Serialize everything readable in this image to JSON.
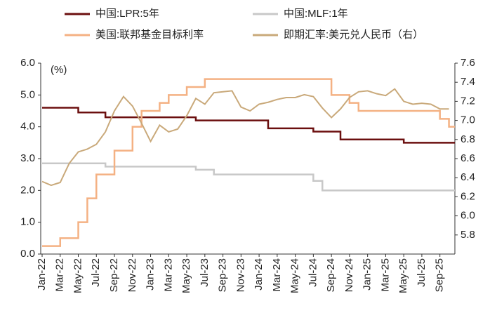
{
  "chart_data": {
    "type": "line",
    "categories": [
      "Jan-22",
      null,
      "Mar-22",
      null,
      "May-22",
      null,
      "Jul-22",
      null,
      "Sep-22",
      null,
      "Nov-22",
      null,
      "Jan-23",
      null,
      "Mar-23",
      null,
      "May-23",
      null,
      "Jul-23",
      null,
      "Sep-23",
      null,
      "Nov-23",
      null,
      "Jan-24",
      null,
      "Mar-24",
      null,
      "May-24",
      null,
      "Jul-24",
      null,
      "Sep-24",
      null,
      "Nov-24",
      null,
      "Jan-25",
      null,
      "Mar-25",
      null,
      "May-25",
      null,
      "Jul-25",
      null,
      "Sep-25",
      null
    ],
    "y_label": "(%)",
    "ylim": [
      0,
      6
    ],
    "yticks": [
      {
        "value": 0,
        "label": "0.0"
      },
      {
        "value": 1,
        "label": "1.0"
      },
      {
        "value": 2,
        "label": "2.0"
      },
      {
        "value": 3,
        "label": "3.0"
      },
      {
        "value": 4,
        "label": "4.0"
      },
      {
        "value": 5,
        "label": "5.0"
      },
      {
        "value": 6,
        "label": "6.0"
      }
    ],
    "y2lim": [
      5.6,
      7.6
    ],
    "y2ticks": [
      5.8,
      {
        "value": 6,
        "label": "6.0"
      },
      6.2,
      6.4,
      6.6,
      6.8,
      {
        "value": 7,
        "label": "7.0"
      },
      7.2,
      7.4,
      7.6
    ],
    "series": [
      {
        "name": "中国:LPR:5年",
        "color": "#6b0f0f",
        "step": true,
        "values": [
          4.6,
          4.6,
          4.6,
          4.6,
          4.45,
          4.45,
          4.45,
          4.3,
          4.3,
          4.3,
          4.3,
          4.3,
          4.3,
          4.3,
          4.3,
          4.3,
          4.3,
          4.2,
          4.2,
          4.2,
          4.2,
          4.2,
          4.2,
          4.2,
          4.2,
          3.95,
          3.95,
          3.95,
          3.95,
          3.95,
          3.85,
          3.85,
          3.85,
          3.6,
          3.6,
          3.6,
          3.6,
          3.6,
          3.6,
          3.6,
          3.5,
          3.5,
          3.5,
          3.5,
          3.5,
          3.5
        ]
      },
      {
        "name": "中国:MLF:1年",
        "color": "#c8c8c8",
        "step": true,
        "values": [
          2.85,
          2.85,
          2.85,
          2.85,
          2.85,
          2.85,
          2.85,
          2.75,
          2.75,
          2.75,
          2.75,
          2.75,
          2.75,
          2.75,
          2.75,
          2.75,
          2.75,
          2.65,
          2.65,
          2.5,
          2.5,
          2.5,
          2.5,
          2.5,
          2.5,
          2.5,
          2.5,
          2.5,
          2.5,
          2.5,
          2.3,
          2.0,
          2.0,
          2.0,
          2.0,
          2.0,
          2.0,
          2.0,
          2.0,
          2.0,
          2.0,
          2.0,
          2.0,
          2.0,
          2.0,
          2.0
        ]
      },
      {
        "name": "美国:联邦基金目标利率",
        "color": "#f4b183",
        "step": true,
        "values": [
          0.25,
          0.25,
          0.5,
          0.5,
          1.0,
          1.75,
          2.5,
          2.5,
          3.25,
          3.25,
          4.0,
          4.5,
          4.5,
          4.75,
          5.0,
          5.0,
          5.25,
          5.25,
          5.5,
          5.5,
          5.5,
          5.5,
          5.5,
          5.5,
          5.5,
          5.5,
          5.5,
          5.5,
          5.5,
          5.5,
          5.5,
          5.5,
          5.0,
          5.0,
          4.75,
          4.5,
          4.5,
          4.5,
          4.5,
          4.5,
          4.5,
          4.5,
          4.5,
          4.5,
          4.25,
          4.0
        ]
      },
      {
        "name": "即期汇率:美元兑人民币（右）",
        "color": "#c9a97a",
        "axis": "y2",
        "values": [
          6.36,
          6.32,
          6.35,
          6.55,
          6.67,
          6.7,
          6.75,
          6.88,
          7.1,
          7.25,
          7.15,
          6.97,
          6.78,
          6.95,
          6.88,
          6.91,
          7.05,
          7.23,
          7.17,
          7.29,
          7.3,
          7.31,
          7.14,
          7.1,
          7.17,
          7.19,
          7.22,
          7.24,
          7.24,
          7.27,
          7.25,
          7.13,
          7.03,
          7.12,
          7.24,
          7.3,
          7.31,
          7.28,
          7.26,
          7.33,
          7.2,
          7.17,
          7.18,
          7.17,
          7.12,
          7.12
        ]
      }
    ]
  }
}
